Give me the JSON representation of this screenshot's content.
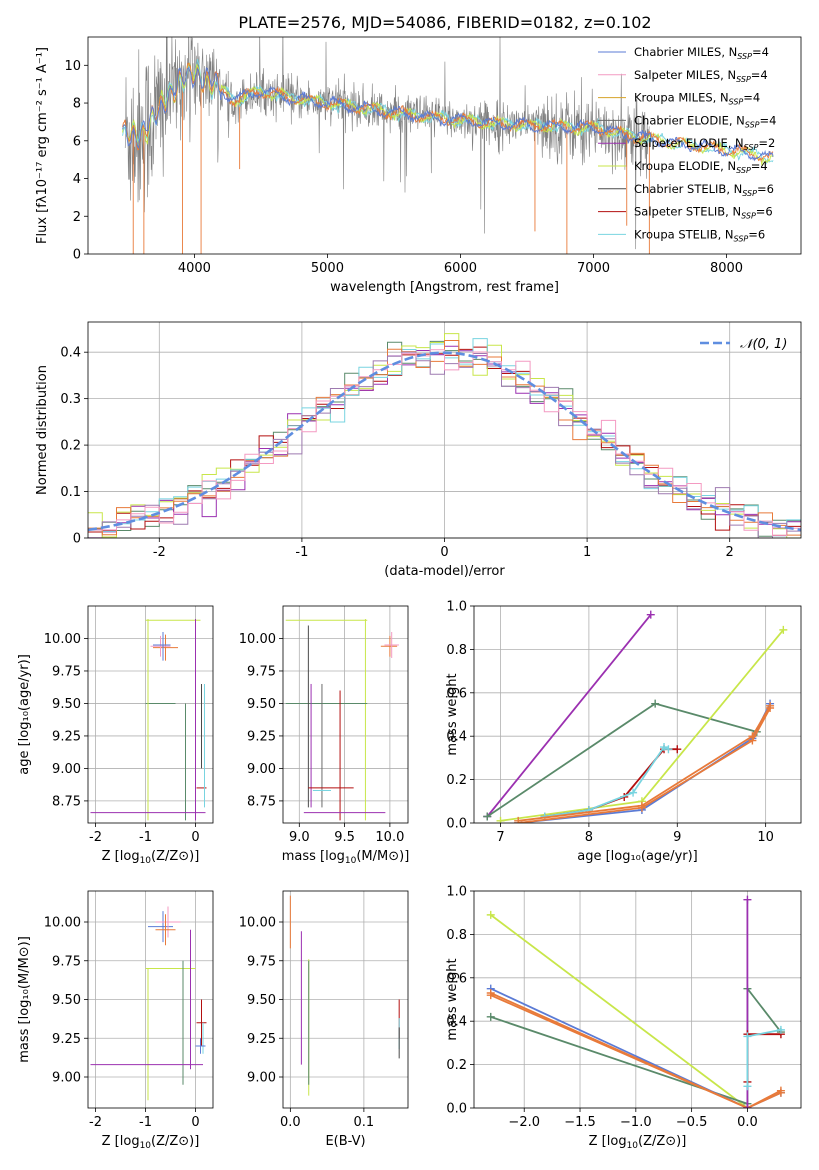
{
  "figure": {
    "title": "PLATE=2576, MJD=54086, FIBERID=0182, z=0.102"
  },
  "colors": {
    "spectrum_data": "#7f7f7f",
    "gaussian": "#5f8ee0",
    "series": [
      "#5b7bd5",
      "#f49ac2",
      "#d6a228",
      "#6b6b6b",
      "#9b30b0",
      "#c8e64a",
      "#4a4a4a",
      "#b30f0f",
      "#78d4e0",
      "#5a8a6a",
      "#e87a3a",
      "#9e7ab0"
    ]
  },
  "chart_data": [
    {
      "type": "line",
      "name": "spectrum",
      "xlabel": "wavelength [Angstrom, rest frame]",
      "ylabel": "Flux [fλ10⁻¹⁷ erg cm⁻² s⁻¹ A⁻¹]",
      "xlim": [
        3200,
        8560
      ],
      "ylim": [
        0,
        11.5
      ],
      "xticks": [
        4000,
        5000,
        6000,
        7000,
        8000
      ],
      "yticks": [
        0,
        2,
        4,
        6,
        8,
        10
      ],
      "legend_position": "top-right",
      "legend": [
        "Chabrier MILES, N_SSP=4",
        "Salpeter MILES, N_SSP=4",
        "Kroupa MILES, N_SSP=4",
        "Chabrier ELODIE, N_SSP=4",
        "Salpeter ELODIE, N_SSP=2",
        "Kroupa ELODIE, N_SSP=4",
        "Chabrier STELIB, N_SSP=6",
        "Salpeter STELIB, N_SSP=6",
        "Kroupa STELIB, N_SSP=6"
      ],
      "legend_parts": [
        {
          "name": "Chabrier MILES, N",
          "sub": "SSP",
          "tail": "=4"
        },
        {
          "name": "Salpeter MILES, N",
          "sub": "SSP",
          "tail": "=4"
        },
        {
          "name": "Kroupa MILES, N",
          "sub": "SSP",
          "tail": "=4"
        },
        {
          "name": "Chabrier ELODIE, N",
          "sub": "SSP",
          "tail": "=4"
        },
        {
          "name": "Salpeter ELODIE, N",
          "sub": "SSP",
          "tail": "=2"
        },
        {
          "name": "Kroupa ELODIE, N",
          "sub": "SSP",
          "tail": "=4"
        },
        {
          "name": "Chabrier STELIB, N",
          "sub": "SSP",
          "tail": "=6"
        },
        {
          "name": "Salpeter STELIB, N",
          "sub": "SSP",
          "tail": "=6"
        },
        {
          "name": "Kroupa STELIB, N",
          "sub": "SSP",
          "tail": "=6"
        }
      ],
      "continuum": [
        [
          3480,
          6.3
        ],
        [
          3600,
          6.4
        ],
        [
          3700,
          7.2
        ],
        [
          3800,
          8.4
        ],
        [
          3900,
          9.2
        ],
        [
          4000,
          9.6
        ],
        [
          4100,
          9.2
        ],
        [
          4300,
          8.2
        ],
        [
          4500,
          8.6
        ],
        [
          4700,
          8.3
        ],
        [
          5000,
          8.0
        ],
        [
          5300,
          7.7
        ],
        [
          5700,
          7.3
        ],
        [
          6000,
          7.1
        ],
        [
          6300,
          6.9
        ],
        [
          6600,
          6.8
        ],
        [
          7000,
          6.7
        ],
        [
          7200,
          6.4
        ],
        [
          7500,
          6.0
        ],
        [
          7800,
          5.7
        ],
        [
          8100,
          5.4
        ],
        [
          8350,
          5.1
        ]
      ]
    },
    {
      "type": "histogram",
      "name": "residuals",
      "xlabel": "(data-model)/error",
      "ylabel": "Normed distribution",
      "xlim": [
        -2.5,
        2.5
      ],
      "ylim": [
        0,
        0.465
      ],
      "xticks": [
        -2,
        -1,
        0,
        1,
        2
      ],
      "yticks": [
        0.0,
        0.1,
        0.2,
        0.3,
        0.4
      ],
      "legend_position": "top-right",
      "gaussian_label": "𝒩(0, 1)",
      "bin_width": 0.1
    },
    {
      "type": "errorbar",
      "name": "age-vs-metallicity",
      "xlabel_main": "Z [log",
      "xlabel_sub": "10",
      "xlabel_tail": "(Z/Z⊙)]",
      "ylabel": "age  [log₁₀(age/yr)]",
      "xlim": [
        -2.15,
        0.35
      ],
      "ylim": [
        8.58,
        10.25
      ],
      "xticks": [
        -2,
        -1,
        0
      ],
      "yticks": [
        "8.75",
        "9.00",
        "9.25",
        "9.50",
        "9.75",
        "10.00"
      ]
    },
    {
      "type": "errorbar",
      "name": "age-vs-mass",
      "xlabel_main": "mass [log",
      "xlabel_sub": "10",
      "xlabel_tail": "(M/M⊙)]",
      "xlim": [
        8.82,
        10.2
      ],
      "ylim": [
        8.58,
        10.25
      ],
      "xticks": [
        "9.0",
        "9.5",
        "10.0"
      ],
      "yticks": [
        "8.75",
        "9.00",
        "9.25",
        "9.50",
        "9.75",
        "10.00"
      ]
    },
    {
      "type": "line",
      "name": "mass-weight-vs-age",
      "xlabel": "age  [log₁₀(age/yr)]",
      "ylabel": "mass weight",
      "xlim": [
        6.7,
        10.4
      ],
      "ylim": [
        0,
        1.0
      ],
      "xticks": [
        7,
        8,
        9,
        10
      ],
      "yticks": [
        "0.0",
        "0.2",
        "0.4",
        "0.6",
        "0.8",
        "1.0"
      ],
      "series": [
        {
          "x": [
            6.85,
            8.7
          ],
          "y": [
            0.03,
            0.96
          ]
        },
        {
          "x": [
            6.85,
            8.75,
            9.9
          ],
          "y": [
            0.03,
            0.55,
            0.42
          ]
        },
        {
          "x": [
            7.0,
            8.6,
            10.2
          ],
          "y": [
            0.01,
            0.1,
            0.89
          ]
        },
        {
          "x": [
            7.5,
            8.0,
            8.4,
            8.85,
            9.0
          ],
          "y": [
            0.03,
            0.06,
            0.12,
            0.34,
            0.34
          ]
        },
        {
          "x": [
            7.5,
            8.0,
            8.5,
            8.85,
            8.9
          ],
          "y": [
            0.03,
            0.06,
            0.14,
            0.35,
            0.34
          ]
        },
        {
          "x": [
            7.2,
            8.6,
            9.85,
            10.05
          ],
          "y": [
            0.0,
            0.06,
            0.39,
            0.55
          ]
        },
        {
          "x": [
            7.2,
            8.6,
            9.85,
            10.05
          ],
          "y": [
            0.0,
            0.07,
            0.38,
            0.53
          ]
        },
        {
          "x": [
            7.2,
            8.6,
            9.85,
            10.05
          ],
          "y": [
            0.01,
            0.08,
            0.4,
            0.54
          ]
        }
      ]
    },
    {
      "type": "errorbar",
      "name": "mass-vs-metallicity",
      "xlabel_main": "Z [log",
      "xlabel_sub": "10",
      "xlabel_tail": "(Z/Z⊙)]",
      "ylabel": "mass [log₁₀(M/M⊙)]",
      "xlim": [
        -2.15,
        0.35
      ],
      "ylim": [
        8.8,
        10.2
      ],
      "xticks": [
        -2,
        -1,
        0
      ],
      "yticks": [
        "9.00",
        "9.25",
        "9.50",
        "9.75",
        "10.00"
      ]
    },
    {
      "type": "errorbar",
      "name": "mass-vs-extinction",
      "xlabel": "E(B-V)",
      "xlim": [
        -0.01,
        0.16
      ],
      "ylim": [
        8.8,
        10.2
      ],
      "xticks": [
        "0.0",
        "0.1"
      ],
      "yticks": [
        "9.00",
        "9.25",
        "9.50",
        "9.75",
        "10.00"
      ]
    },
    {
      "type": "line",
      "name": "mass-weight-vs-metallicity",
      "xlabel_main": "Z [log",
      "xlabel_sub": "10",
      "xlabel_tail": "(Z/Z⊙)]",
      "ylabel": "mass weight",
      "xlim": [
        -2.45,
        0.48
      ],
      "ylim": [
        0,
        1.0
      ],
      "xticks": [
        "−2.0",
        "−1.5",
        "−1.0",
        "−0.5",
        "0.0"
      ],
      "yticks": [
        "0.0",
        "0.2",
        "0.4",
        "0.6",
        "0.8",
        "1.0"
      ],
      "series": [
        {
          "x": [
            -2.3,
            0.0
          ],
          "y": [
            0.89,
            0.0
          ]
        },
        {
          "x": [
            -2.3,
            0.0,
            0.0,
            0.3
          ],
          "y": [
            0.42,
            0.02,
            0.55,
            0.35
          ]
        },
        {
          "x": [
            -2.3,
            0.0,
            0.3
          ],
          "y": [
            0.55,
            0.0,
            0.07
          ]
        },
        {
          "x": [
            -2.3,
            0.0,
            0.3
          ],
          "y": [
            0.53,
            0.0,
            0.08
          ]
        },
        {
          "x": [
            -2.3,
            0.0,
            0.3
          ],
          "y": [
            0.52,
            0.0,
            0.07
          ]
        },
        {
          "x": [
            0.0,
            0.0
          ],
          "y": [
            0.0,
            0.96
          ]
        },
        {
          "x": [
            0.0,
            0.0,
            0.3
          ],
          "y": [
            0.12,
            0.34,
            0.34
          ]
        },
        {
          "x": [
            0.0,
            0.0,
            0.3
          ],
          "y": [
            0.1,
            0.33,
            0.36
          ]
        }
      ]
    }
  ]
}
